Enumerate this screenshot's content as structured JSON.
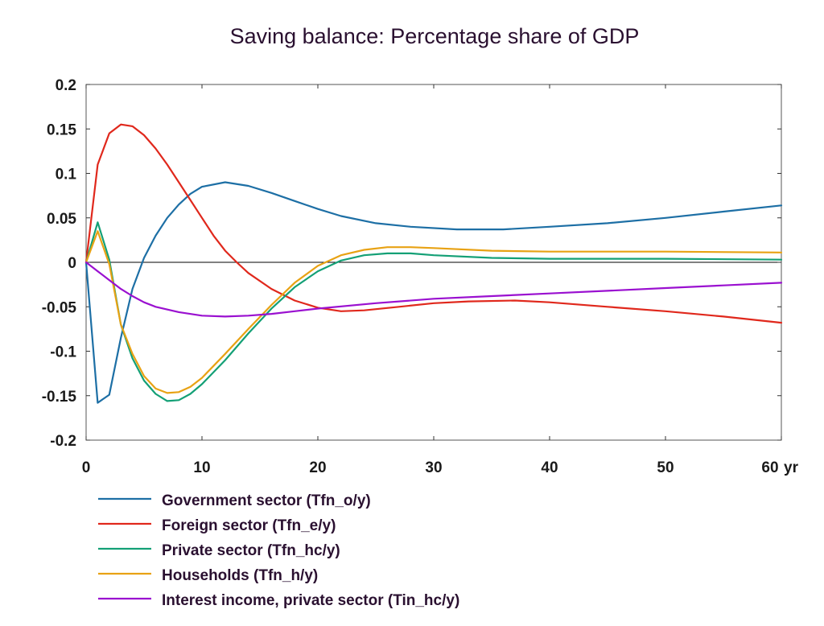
{
  "chart_data": {
    "type": "line",
    "title": "Saving balance: Percentage share of GDP",
    "xlabel": "",
    "ylabel": "",
    "x_unit_label": "yr",
    "xlim": [
      0,
      60
    ],
    "ylim": [
      -0.2,
      0.2
    ],
    "x_ticks": [
      "0",
      "10",
      "20",
      "30",
      "40",
      "50",
      "60"
    ],
    "y_ticks": [
      "0.2",
      "0.15",
      "0.1",
      "0.05",
      "0",
      "-0.05",
      "-0.1",
      "-0.15",
      "-0.2"
    ],
    "grid": false,
    "legend_placement": "bottom",
    "series": [
      {
        "name": "Government sector (Tfn_o/y)",
        "color": "#1d6fa5",
        "points": [
          [
            0,
            0
          ],
          [
            1,
            -0.158
          ],
          [
            2,
            -0.149
          ],
          [
            3,
            -0.085
          ],
          [
            4,
            -0.03
          ],
          [
            5,
            0.005
          ],
          [
            6,
            0.03
          ],
          [
            7,
            0.05
          ],
          [
            8,
            0.065
          ],
          [
            9,
            0.077
          ],
          [
            10,
            0.085
          ],
          [
            12,
            0.09
          ],
          [
            14,
            0.086
          ],
          [
            16,
            0.078
          ],
          [
            18,
            0.069
          ],
          [
            20,
            0.06
          ],
          [
            22,
            0.052
          ],
          [
            25,
            0.044
          ],
          [
            28,
            0.04
          ],
          [
            32,
            0.037
          ],
          [
            36,
            0.037
          ],
          [
            40,
            0.04
          ],
          [
            45,
            0.044
          ],
          [
            50,
            0.05
          ],
          [
            55,
            0.057
          ],
          [
            60,
            0.064
          ]
        ]
      },
      {
        "name": "Foreign sector (Tfn_e/y)",
        "color": "#e0281c",
        "points": [
          [
            0,
            0
          ],
          [
            1,
            0.11
          ],
          [
            2,
            0.145
          ],
          [
            3,
            0.155
          ],
          [
            4,
            0.153
          ],
          [
            5,
            0.143
          ],
          [
            6,
            0.128
          ],
          [
            7,
            0.11
          ],
          [
            8,
            0.09
          ],
          [
            9,
            0.07
          ],
          [
            10,
            0.05
          ],
          [
            11,
            0.03
          ],
          [
            12,
            0.013
          ],
          [
            13,
            0
          ],
          [
            14,
            -0.012
          ],
          [
            16,
            -0.03
          ],
          [
            18,
            -0.043
          ],
          [
            20,
            -0.051
          ],
          [
            22,
            -0.055
          ],
          [
            24,
            -0.054
          ],
          [
            27,
            -0.05
          ],
          [
            30,
            -0.046
          ],
          [
            33,
            -0.044
          ],
          [
            37,
            -0.043
          ],
          [
            40,
            -0.045
          ],
          [
            45,
            -0.05
          ],
          [
            50,
            -0.055
          ],
          [
            55,
            -0.061
          ],
          [
            60,
            -0.068
          ]
        ]
      },
      {
        "name": "Private sector (Tfn_hc/y)",
        "color": "#14a076",
        "points": [
          [
            0,
            0
          ],
          [
            1,
            0.045
          ],
          [
            2,
            0.003
          ],
          [
            3,
            -0.07
          ],
          [
            4,
            -0.108
          ],
          [
            5,
            -0.133
          ],
          [
            6,
            -0.148
          ],
          [
            7,
            -0.156
          ],
          [
            8,
            -0.155
          ],
          [
            9,
            -0.148
          ],
          [
            10,
            -0.137
          ],
          [
            12,
            -0.11
          ],
          [
            14,
            -0.08
          ],
          [
            16,
            -0.052
          ],
          [
            18,
            -0.028
          ],
          [
            20,
            -0.01
          ],
          [
            22,
            0.002
          ],
          [
            24,
            0.008
          ],
          [
            26,
            0.01
          ],
          [
            28,
            0.01
          ],
          [
            30,
            0.008
          ],
          [
            35,
            0.005
          ],
          [
            40,
            0.004
          ],
          [
            50,
            0.004
          ],
          [
            60,
            0.003
          ]
        ]
      },
      {
        "name": "Households (Tfn_h/y)",
        "color": "#e8a214",
        "points": [
          [
            0,
            0
          ],
          [
            1,
            0.035
          ],
          [
            2,
            -0.002
          ],
          [
            3,
            -0.07
          ],
          [
            4,
            -0.103
          ],
          [
            5,
            -0.128
          ],
          [
            6,
            -0.142
          ],
          [
            7,
            -0.147
          ],
          [
            8,
            -0.146
          ],
          [
            9,
            -0.14
          ],
          [
            10,
            -0.13
          ],
          [
            12,
            -0.103
          ],
          [
            14,
            -0.075
          ],
          [
            16,
            -0.048
          ],
          [
            18,
            -0.023
          ],
          [
            20,
            -0.004
          ],
          [
            22,
            0.008
          ],
          [
            24,
            0.014
          ],
          [
            26,
            0.017
          ],
          [
            28,
            0.017
          ],
          [
            30,
            0.016
          ],
          [
            35,
            0.013
          ],
          [
            40,
            0.012
          ],
          [
            50,
            0.012
          ],
          [
            60,
            0.011
          ]
        ]
      },
      {
        "name": "Interest income, private sector (Tin_hc/y)",
        "color": "#9a10d0",
        "points": [
          [
            0,
            0
          ],
          [
            1,
            -0.01
          ],
          [
            2,
            -0.02
          ],
          [
            3,
            -0.03
          ],
          [
            4,
            -0.038
          ],
          [
            5,
            -0.045
          ],
          [
            6,
            -0.05
          ],
          [
            8,
            -0.056
          ],
          [
            10,
            -0.06
          ],
          [
            12,
            -0.061
          ],
          [
            14,
            -0.06
          ],
          [
            16,
            -0.058
          ],
          [
            18,
            -0.055
          ],
          [
            20,
            -0.052
          ],
          [
            25,
            -0.046
          ],
          [
            30,
            -0.041
          ],
          [
            35,
            -0.038
          ],
          [
            40,
            -0.035
          ],
          [
            45,
            -0.032
          ],
          [
            50,
            -0.029
          ],
          [
            55,
            -0.026
          ],
          [
            60,
            -0.023
          ]
        ]
      }
    ]
  }
}
